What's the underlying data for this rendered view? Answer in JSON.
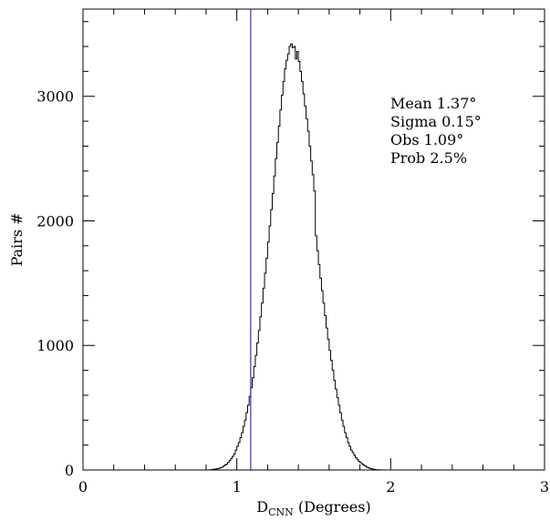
{
  "chart_data": {
    "type": "histogram",
    "title": "",
    "xlabel": {
      "main": "D",
      "subscript": "CNN",
      "suffix": " (Degrees)"
    },
    "ylabel": "Pairs #",
    "xlim": [
      0,
      3
    ],
    "ylim": [
      0,
      3700
    ],
    "x_ticks": [
      {
        "value": 0,
        "label": "0"
      },
      {
        "value": 1,
        "label": "1"
      },
      {
        "value": 2,
        "label": "2"
      },
      {
        "value": 3,
        "label": "3"
      }
    ],
    "x_minor_step": 0.2,
    "y_ticks": [
      {
        "value": 0,
        "label": "0"
      },
      {
        "value": 1000,
        "label": "1000"
      },
      {
        "value": 2000,
        "label": "2000"
      },
      {
        "value": 3000,
        "label": "3000"
      }
    ],
    "y_minor_step": 200,
    "grid": false,
    "bin_width": 0.01,
    "bins_start": 0.8,
    "counts": [
      0,
      0,
      2,
      2,
      5,
      6,
      8,
      10,
      13,
      18,
      22,
      30,
      40,
      48,
      60,
      75,
      92,
      110,
      130,
      160,
      190,
      220,
      260,
      300,
      350,
      400,
      460,
      520,
      590,
      660,
      740,
      830,
      920,
      1020,
      1120,
      1230,
      1340,
      1460,
      1580,
      1700,
      1830,
      1960,
      2090,
      2220,
      2360,
      2500,
      2630,
      2760,
      2890,
      3010,
      3120,
      3220,
      3290,
      3340,
      3400,
      3420,
      3390,
      3400,
      3300,
      3360,
      3280,
      3200,
      3120,
      3020,
      2920,
      2820,
      2720,
      2600,
      2480,
      2370,
      2240,
      1880,
      1760,
      1650,
      1540,
      1440,
      1340,
      1240,
      1140,
      1050,
      960,
      880,
      800,
      720,
      650,
      580,
      520,
      460,
      400,
      350,
      300,
      260,
      220,
      190,
      160,
      140,
      120,
      100,
      85,
      70,
      60,
      50,
      40,
      32,
      25,
      18,
      14,
      10,
      7,
      5,
      3,
      2,
      1,
      1,
      0
    ],
    "vline": {
      "x": 1.09,
      "color": "#3333cc"
    },
    "annotations": [
      "Mean 1.37°",
      "Sigma 0.15°",
      "Obs 1.09°",
      "Prob 2.5%"
    ],
    "line_color": "#000000"
  }
}
